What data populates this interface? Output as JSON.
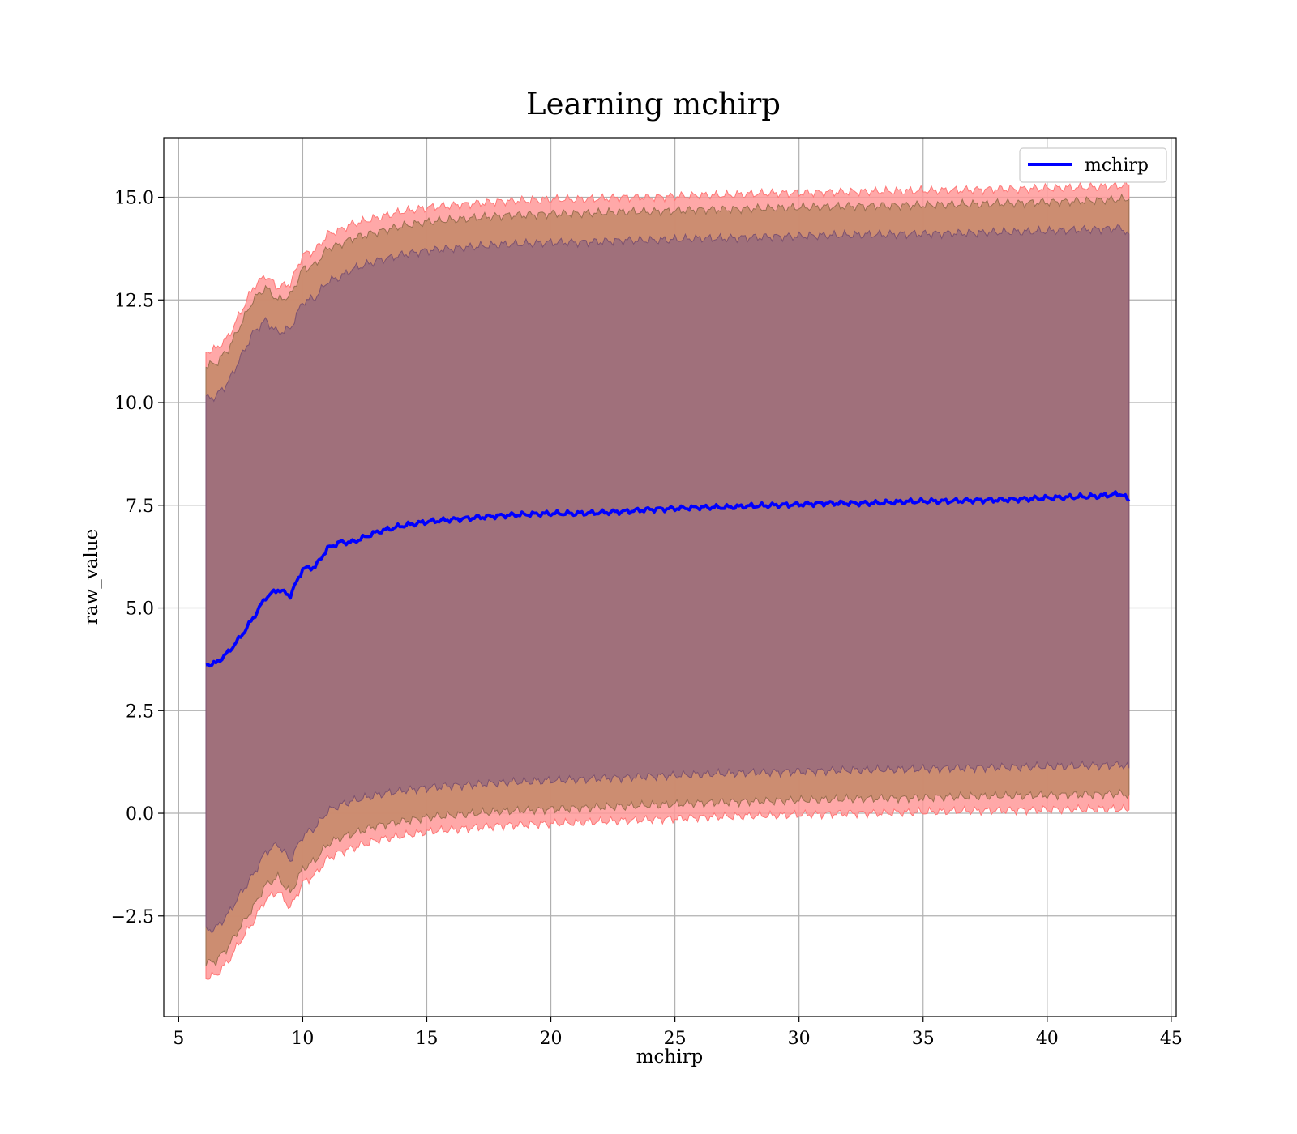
{
  "chart_data": {
    "type": "line",
    "title": "Learning mchirp",
    "xlabel": "mchirp",
    "ylabel": "raw_value",
    "xlim": [
      4.4,
      45.2
    ],
    "ylim": [
      -4.95,
      16.45
    ],
    "x_ticks": [
      5,
      10,
      15,
      20,
      25,
      30,
      35,
      40,
      45
    ],
    "x_tick_labels": [
      "5",
      "10",
      "15",
      "20",
      "25",
      "30",
      "35",
      "40",
      "45"
    ],
    "y_ticks": [
      -2.5,
      0.0,
      2.5,
      5.0,
      7.5,
      10.0,
      12.5,
      15.0
    ],
    "y_tick_labels": [
      "−2.5",
      "0.0",
      "2.5",
      "5.0",
      "7.5",
      "10.0",
      "12.5",
      "15.0"
    ],
    "grid": true,
    "legend": {
      "position": "upper-right",
      "entries": [
        "mchirp"
      ]
    },
    "colors": {
      "line": "#0000ff",
      "band_outer": "#ff9999",
      "band_mid": "#c98b6e",
      "band_inner": "#a0707b"
    },
    "series": [
      {
        "name": "mchirp",
        "x": [
          6.1,
          6.5,
          7,
          7.5,
          8,
          8.5,
          9,
          9.5,
          10,
          10.5,
          11,
          11.5,
          12,
          13,
          14,
          15,
          16,
          17,
          18,
          19,
          20,
          21,
          22,
          23,
          24,
          25,
          26,
          27,
          28,
          29,
          30,
          31,
          32,
          33,
          34,
          35,
          36,
          37,
          38,
          39,
          40,
          41,
          42,
          43,
          43.3
        ],
        "y": [
          3.62,
          3.65,
          3.92,
          4.3,
          4.75,
          5.25,
          5.45,
          5.3,
          5.95,
          6.0,
          6.45,
          6.6,
          6.6,
          6.85,
          7.0,
          7.1,
          7.15,
          7.2,
          7.25,
          7.28,
          7.3,
          7.3,
          7.32,
          7.35,
          7.4,
          7.42,
          7.45,
          7.45,
          7.48,
          7.5,
          7.52,
          7.55,
          7.55,
          7.55,
          7.58,
          7.6,
          7.6,
          7.62,
          7.63,
          7.65,
          7.68,
          7.7,
          7.72,
          7.78,
          7.6
        ],
        "band_outer_upper": [
          11.25,
          11.3,
          11.6,
          12.2,
          12.8,
          13.1,
          12.8,
          12.9,
          13.6,
          13.7,
          14.1,
          14.2,
          14.35,
          14.5,
          14.65,
          14.75,
          14.8,
          14.85,
          14.9,
          14.92,
          14.95,
          14.95,
          14.97,
          15.0,
          15.0,
          15.02,
          15.05,
          15.05,
          15.08,
          15.1,
          15.1,
          15.12,
          15.13,
          15.14,
          15.15,
          15.16,
          15.17,
          15.18,
          15.2,
          15.2,
          15.22,
          15.23,
          15.25,
          15.28,
          15.3
        ],
        "band_outer_lower": [
          -4.0,
          -3.95,
          -3.6,
          -3.1,
          -2.65,
          -2.1,
          -1.9,
          -2.3,
          -1.7,
          -1.5,
          -1.1,
          -0.95,
          -0.85,
          -0.65,
          -0.55,
          -0.45,
          -0.4,
          -0.35,
          -0.3,
          -0.28,
          -0.25,
          -0.23,
          -0.2,
          -0.18,
          -0.15,
          -0.13,
          -0.1,
          -0.08,
          -0.06,
          -0.05,
          -0.03,
          -0.02,
          0.0,
          0.0,
          0.02,
          0.03,
          0.05,
          0.06,
          0.07,
          0.08,
          0.09,
          0.1,
          0.1,
          0.1,
          0.08
        ],
        "band_mid_upper": [
          10.9,
          10.95,
          11.3,
          11.9,
          12.5,
          12.8,
          12.5,
          12.6,
          13.25,
          13.35,
          13.75,
          13.85,
          14.0,
          14.15,
          14.3,
          14.4,
          14.45,
          14.5,
          14.55,
          14.57,
          14.6,
          14.6,
          14.62,
          14.65,
          14.65,
          14.67,
          14.7,
          14.7,
          14.72,
          14.74,
          14.75,
          14.77,
          14.78,
          14.79,
          14.8,
          14.81,
          14.82,
          14.83,
          14.85,
          14.86,
          14.88,
          14.9,
          14.92,
          14.95,
          14.95
        ],
        "band_mid_lower": [
          -3.65,
          -3.6,
          -3.25,
          -2.75,
          -2.3,
          -1.75,
          -1.55,
          -1.95,
          -1.35,
          -1.15,
          -0.75,
          -0.6,
          -0.5,
          -0.3,
          -0.2,
          -0.1,
          -0.05,
          0.0,
          0.05,
          0.07,
          0.1,
          0.12,
          0.15,
          0.17,
          0.2,
          0.22,
          0.25,
          0.27,
          0.29,
          0.3,
          0.32,
          0.33,
          0.35,
          0.36,
          0.37,
          0.38,
          0.4,
          0.41,
          0.42,
          0.43,
          0.44,
          0.45,
          0.46,
          0.48,
          0.45
        ],
        "band_inner_upper": [
          10.1,
          10.15,
          10.5,
          11.1,
          11.7,
          12.0,
          11.7,
          11.8,
          12.45,
          12.55,
          12.95,
          13.05,
          13.25,
          13.45,
          13.6,
          13.7,
          13.75,
          13.8,
          13.85,
          13.87,
          13.9,
          13.9,
          13.92,
          13.95,
          13.95,
          13.97,
          14.0,
          14.0,
          14.02,
          14.04,
          14.05,
          14.07,
          14.08,
          14.09,
          14.1,
          14.11,
          14.12,
          14.13,
          14.15,
          14.16,
          14.18,
          14.2,
          14.22,
          14.25,
          14.1
        ],
        "band_inner_lower": [
          -2.85,
          -2.8,
          -2.45,
          -1.95,
          -1.5,
          -0.95,
          -0.75,
          -1.15,
          -0.55,
          -0.35,
          0.05,
          0.2,
          0.3,
          0.45,
          0.55,
          0.62,
          0.67,
          0.7,
          0.75,
          0.77,
          0.8,
          0.82,
          0.85,
          0.87,
          0.9,
          0.92,
          0.95,
          0.97,
          0.99,
          1.0,
          1.02,
          1.03,
          1.05,
          1.06,
          1.07,
          1.08,
          1.1,
          1.11,
          1.12,
          1.13,
          1.14,
          1.15,
          1.16,
          1.18,
          1.1
        ]
      }
    ]
  }
}
